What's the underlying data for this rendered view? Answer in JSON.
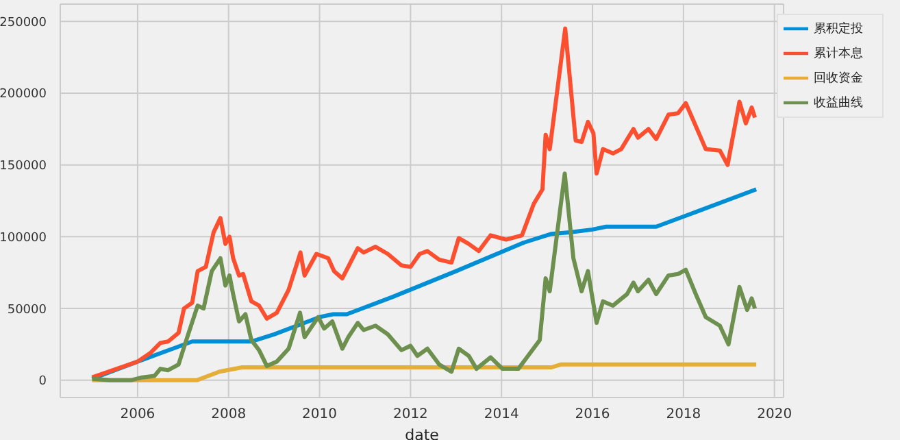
{
  "chart_data": {
    "type": "line",
    "xlabel": "date",
    "xlim": [
      2004.3,
      2020.2
    ],
    "xticks": [
      2006,
      2008,
      2010,
      2012,
      2014,
      2016,
      2018,
      2020
    ],
    "ylim": [
      -12000,
      262000
    ],
    "yticks": [
      0,
      50000,
      100000,
      150000,
      200000,
      250000
    ],
    "grid": true,
    "legend": "top right",
    "marker": "none",
    "line_style": "solid",
    "series": [
      {
        "name": "累积定投",
        "color": "#008fd5",
        "x": [
          2005.0,
          2006.0,
          2007.2,
          2008.5,
          2009.0,
          2010.0,
          2010.3,
          2010.6,
          2011.6,
          2013.0,
          2014.5,
          2015.1,
          2015.5,
          2016.0,
          2016.3,
          2017.4,
          2018.0,
          2019.6
        ],
        "values": [
          1000,
          13000,
          27000,
          27000,
          32000,
          44000,
          46000,
          46000,
          58000,
          76000,
          96000,
          102000,
          103000,
          105000,
          107000,
          107000,
          114000,
          133000
        ]
      },
      {
        "name": "累计本息",
        "color": "#fc4f30",
        "x": [
          2005.0,
          2006.0,
          2006.28,
          2006.5,
          2006.67,
          2006.9,
          2007.02,
          2007.2,
          2007.32,
          2007.5,
          2007.67,
          2007.82,
          2007.93,
          2008.02,
          2008.1,
          2008.23,
          2008.32,
          2008.5,
          2008.67,
          2008.84,
          2009.06,
          2009.32,
          2009.58,
          2009.67,
          2009.93,
          2010.19,
          2010.32,
          2010.5,
          2010.63,
          2010.84,
          2010.97,
          2011.23,
          2011.5,
          2011.8,
          2012.0,
          2012.2,
          2012.37,
          2012.63,
          2012.9,
          2013.06,
          2013.28,
          2013.5,
          2013.76,
          2014.1,
          2014.45,
          2014.71,
          2014.9,
          2014.97,
          2015.06,
          2015.4,
          2015.63,
          2015.76,
          2015.9,
          2016.02,
          2016.09,
          2016.23,
          2016.45,
          2016.63,
          2016.9,
          2017.0,
          2017.23,
          2017.4,
          2017.67,
          2017.88,
          2018.05,
          2018.23,
          2018.49,
          2018.8,
          2018.97,
          2019.23,
          2019.37,
          2019.5,
          2019.57
        ],
        "values": [
          2000,
          13000,
          19000,
          26000,
          27000,
          33000,
          50000,
          54000,
          76000,
          79000,
          103000,
          113000,
          95000,
          100000,
          85000,
          73000,
          74000,
          55000,
          52000,
          43000,
          47000,
          63000,
          89000,
          73000,
          88000,
          85000,
          76000,
          71000,
          79000,
          92000,
          89000,
          93000,
          88000,
          80000,
          79000,
          88000,
          90000,
          84000,
          82000,
          99000,
          95000,
          90000,
          101000,
          98000,
          101000,
          123000,
          133000,
          171000,
          161000,
          245000,
          167000,
          166000,
          180000,
          172000,
          144000,
          161000,
          158000,
          161000,
          175000,
          169000,
          175000,
          168000,
          185000,
          186000,
          193000,
          180000,
          161000,
          160000,
          150000,
          194000,
          179000,
          190000,
          183000
        ]
      },
      {
        "name": "回收资金",
        "color": "#e5ae38",
        "x": [
          2005.0,
          2007.3,
          2007.8,
          2008.3,
          2015.1,
          2015.3,
          2019.6
        ],
        "values": [
          0,
          0,
          6000,
          9000,
          9000,
          11000,
          11000
        ]
      },
      {
        "name": "收益曲线",
        "color": "#6d904f",
        "x": [
          2005.0,
          2005.4,
          2005.85,
          2006.1,
          2006.37,
          2006.5,
          2006.67,
          2006.9,
          2007.06,
          2007.32,
          2007.45,
          2007.63,
          2007.82,
          2007.93,
          2008.02,
          2008.1,
          2008.23,
          2008.37,
          2008.5,
          2008.67,
          2008.84,
          2009.06,
          2009.32,
          2009.57,
          2009.67,
          2009.97,
          2010.1,
          2010.28,
          2010.5,
          2010.63,
          2010.84,
          2010.97,
          2011.23,
          2011.5,
          2011.8,
          2012.0,
          2012.15,
          2012.37,
          2012.63,
          2012.9,
          2013.06,
          2013.28,
          2013.45,
          2013.76,
          2014.02,
          2014.37,
          2014.63,
          2014.84,
          2014.97,
          2015.06,
          2015.39,
          2015.58,
          2015.76,
          2015.9,
          2016.09,
          2016.23,
          2016.45,
          2016.76,
          2016.9,
          2017.0,
          2017.23,
          2017.4,
          2017.67,
          2017.88,
          2018.05,
          2018.27,
          2018.49,
          2018.8,
          2018.99,
          2019.23,
          2019.4,
          2019.5,
          2019.57
        ],
        "values": [
          1000,
          0,
          0,
          2000,
          3000,
          8000,
          7000,
          11000,
          27000,
          52000,
          50000,
          76000,
          85000,
          66000,
          73000,
          60000,
          41000,
          46000,
          28000,
          21000,
          10000,
          13000,
          22000,
          47000,
          30000,
          44000,
          36000,
          41000,
          22000,
          30000,
          40000,
          35000,
          38000,
          32000,
          21000,
          24000,
          17000,
          22000,
          11000,
          6000,
          22000,
          17000,
          8000,
          16000,
          8000,
          8000,
          19000,
          28000,
          71000,
          62000,
          144000,
          85000,
          62000,
          76000,
          40000,
          55000,
          52000,
          60000,
          68000,
          62000,
          70000,
          60000,
          73000,
          74000,
          77000,
          60000,
          44000,
          38000,
          25000,
          65000,
          49000,
          57000,
          50000
        ]
      }
    ]
  }
}
